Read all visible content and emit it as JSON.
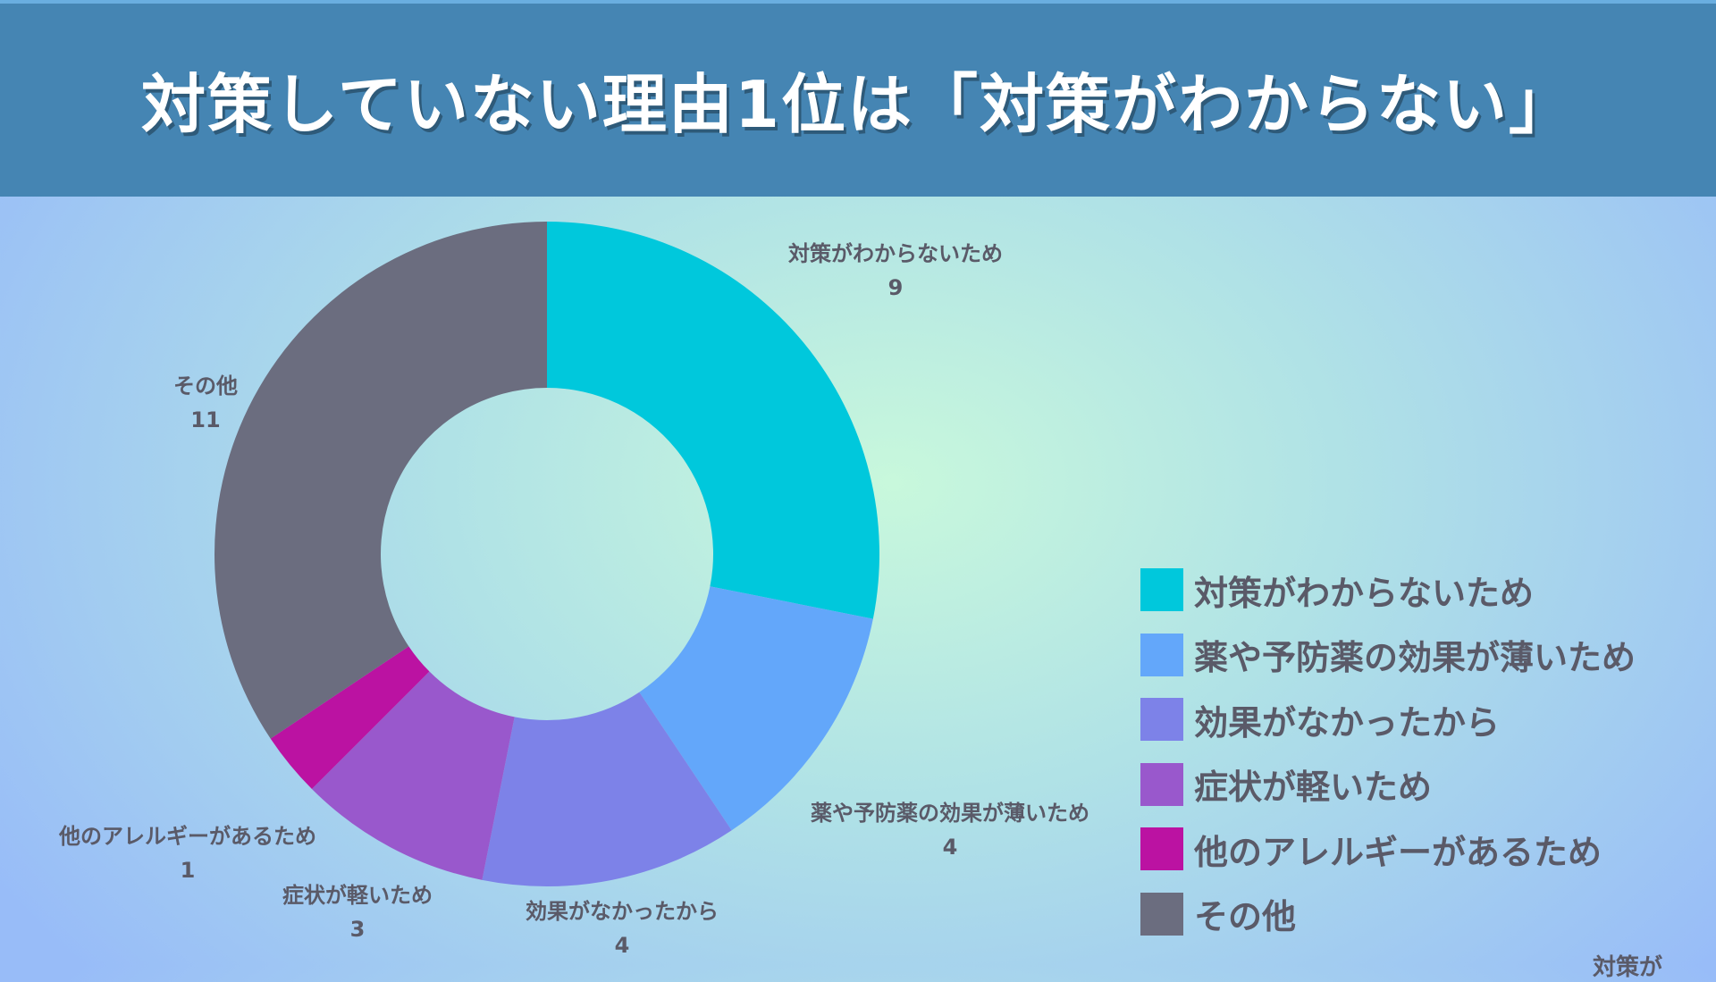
{
  "header": {
    "title": "対策していない理由1位は「対策がわからない」",
    "bg_color": "#4585b3"
  },
  "chart_data": {
    "type": "pie",
    "donut": true,
    "title": "",
    "legend_position": "right-bottom",
    "slices": [
      {
        "label": "対策がわからないため",
        "value": 9,
        "color": "#00c8dc"
      },
      {
        "label": "薬や予防薬の効果が薄いため",
        "value": 4,
        "color": "#63a7fa"
      },
      {
        "label": "効果がなかったから",
        "value": 4,
        "color": "#7d82e8"
      },
      {
        "label": "症状が軽いため",
        "value": 3,
        "color": "#9958cc"
      },
      {
        "label": "他のアレルギーがあるため",
        "value": 1,
        "color": "#bb12a2"
      },
      {
        "label": "その他",
        "value": 11,
        "color": "#6b6d7f"
      }
    ]
  },
  "corner_text": "対策が"
}
